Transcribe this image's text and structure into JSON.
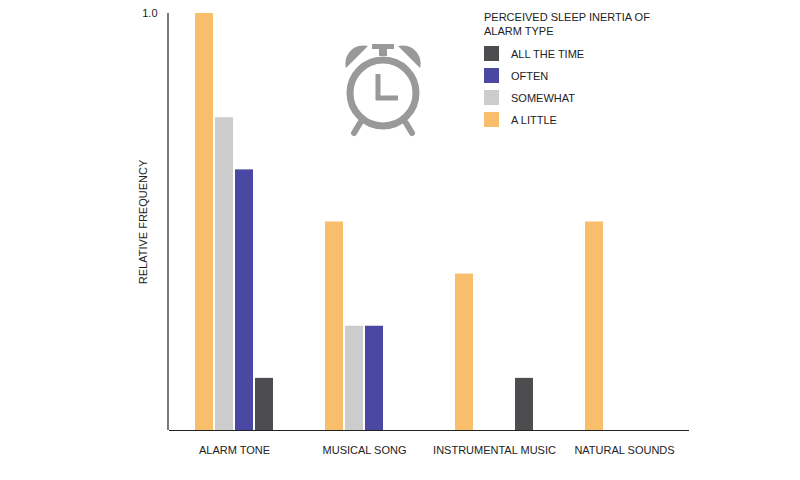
{
  "chart_data": {
    "type": "bar",
    "y_label": "RELATIVE FREQUENCY",
    "legend_title": "PERCEIVED SLEEP INERTIA OF ALARM TYPE",
    "categories": [
      "ALARM TONE",
      "MUSICAL SONG",
      "INSTRUMENTAL MUSIC",
      "NATURAL SOUNDS"
    ],
    "series": [
      {
        "name": "A LITTLE",
        "color": "#f9be6c",
        "values": [
          1.0,
          0.5,
          0.375,
          0.5
        ]
      },
      {
        "name": "SOMEWHAT",
        "color": "#cccccc",
        "values": [
          0.75,
          0.25,
          0,
          0
        ]
      },
      {
        "name": "OFTEN",
        "color": "#4b48a3",
        "values": [
          0.625,
          0.25,
          0,
          0
        ]
      },
      {
        "name": "ALL THE TIME",
        "color": "#4d4d4f",
        "values": [
          0.125,
          0,
          0.125,
          0
        ]
      }
    ],
    "ylim": [
      0,
      1
    ],
    "yticks": [
      1
    ],
    "grid": false,
    "legend": "top-right"
  }
}
